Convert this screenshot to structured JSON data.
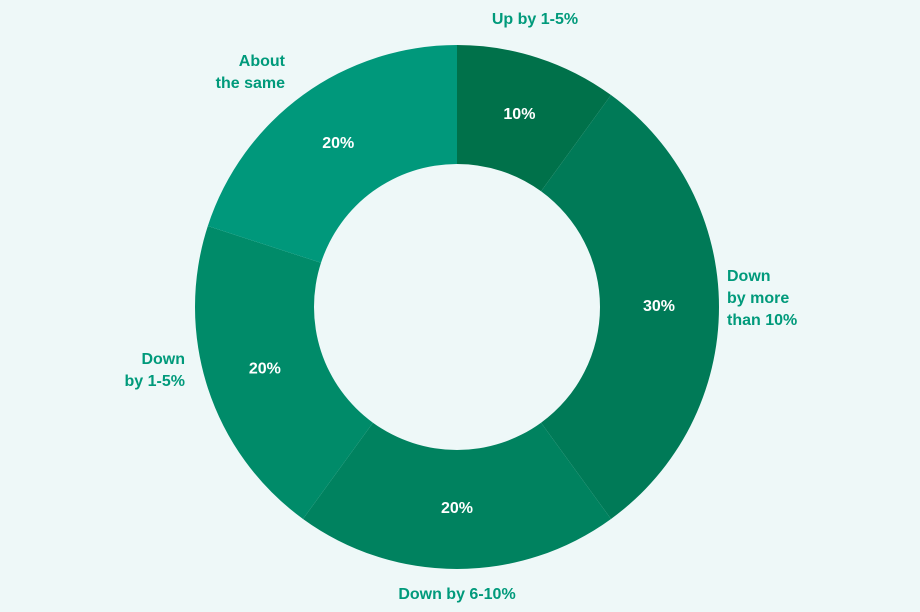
{
  "chart_data": {
    "type": "donut",
    "categories": [
      "Up by 1-5%",
      "Down\nby more\nthan 10%",
      "Down by 6-10%",
      "Down\nby 1-5%",
      "About\nthe same"
    ],
    "values": [
      10,
      30,
      20,
      20,
      20
    ],
    "value_labels": [
      "10%",
      "30%",
      "20%",
      "20%",
      "20%"
    ],
    "colors": [
      "#00714a",
      "#007a57",
      "#00825f",
      "#008b69",
      "#00987b"
    ]
  }
}
